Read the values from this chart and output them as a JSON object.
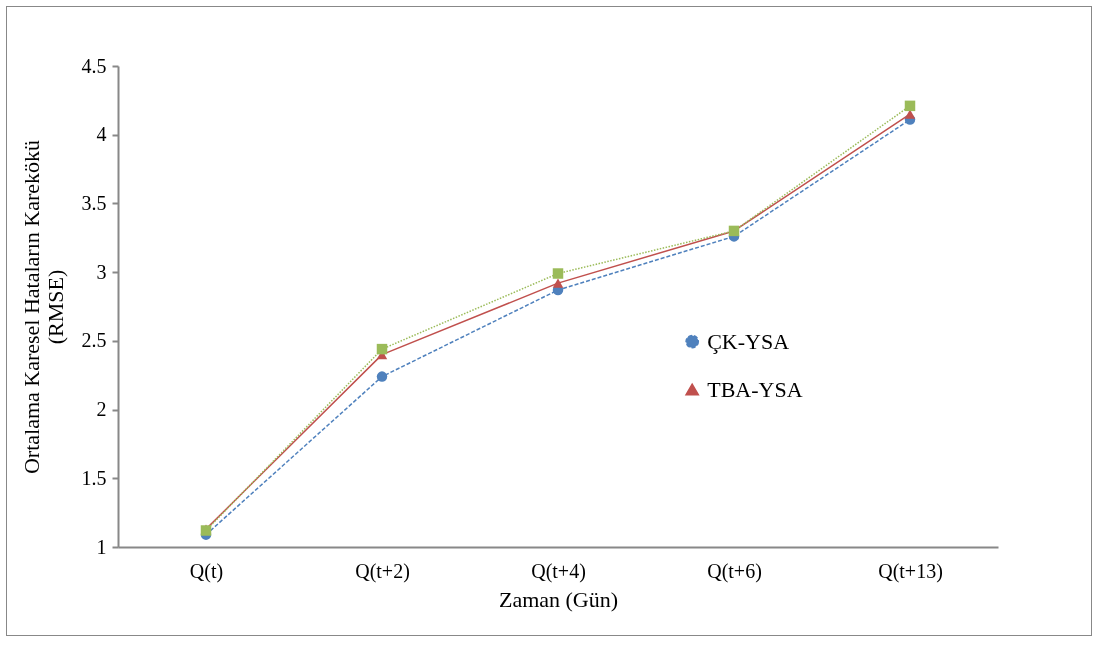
{
  "chart_data": {
    "type": "line",
    "xlabel": "Zaman (Gün)",
    "ylabel": "Ortalama Karesel Hataların Karekökü\n(RMSE)",
    "categories": [
      "Q(t)",
      "Q(t+2)",
      "Q(t+4)",
      "Q(t+6)",
      "Q(t+13)"
    ],
    "series": [
      {
        "name": "ÇK-YSA",
        "color": "#4f81bd",
        "marker": "circle",
        "line_style": "dashed",
        "values": [
          1.09,
          2.24,
          2.87,
          3.26,
          4.11
        ]
      },
      {
        "name": "TBA-YSA",
        "color": "#c0504d",
        "marker": "triangle",
        "line_style": "solid",
        "values": [
          1.13,
          2.4,
          2.92,
          3.3,
          4.15
        ]
      },
      {
        "color": "#9bbb59",
        "marker": "square",
        "line_style": "dotted",
        "values": [
          1.12,
          2.44,
          2.99,
          3.3,
          4.21
        ]
      }
    ],
    "ylim": [
      1,
      4.5
    ],
    "yticks": [
      1,
      1.5,
      2,
      2.5,
      3,
      3.5,
      4,
      4.5
    ],
    "grid": false,
    "legend": "right"
  }
}
